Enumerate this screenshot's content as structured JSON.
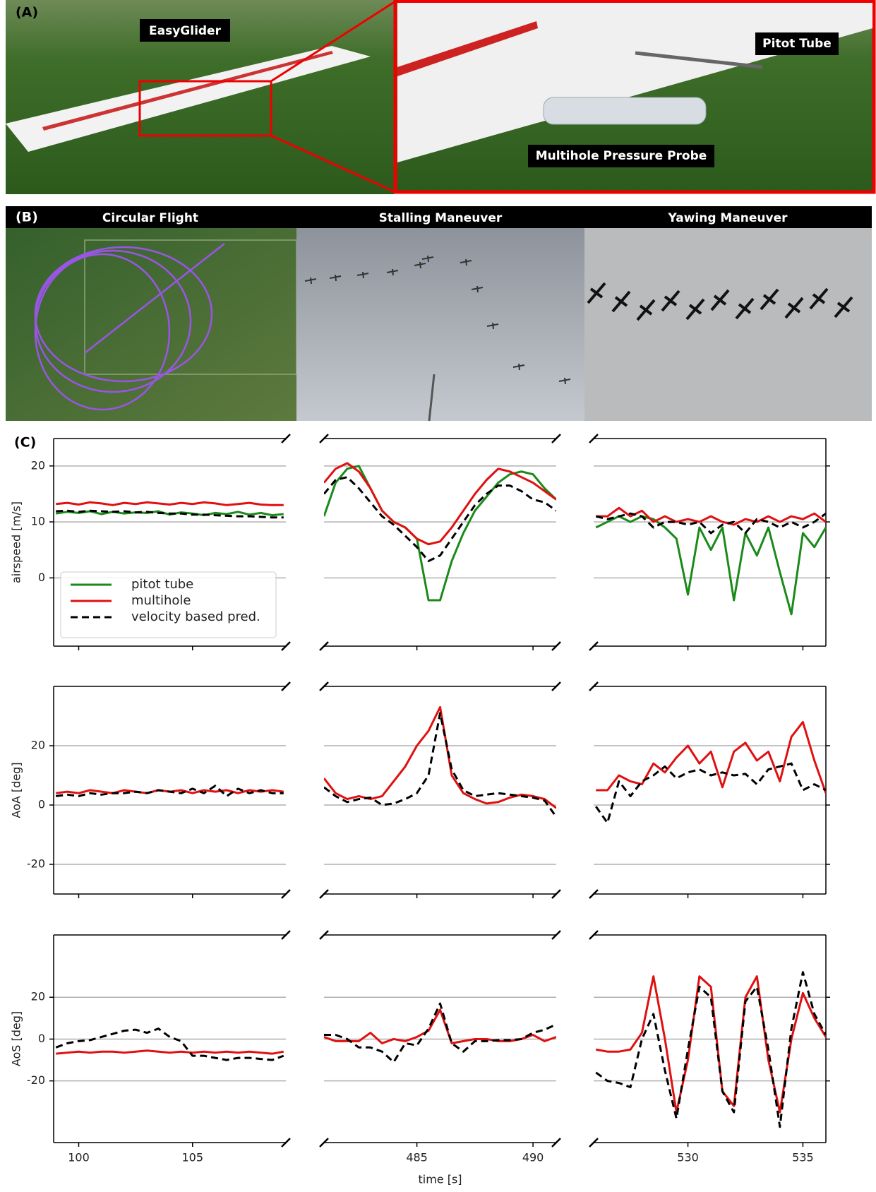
{
  "panel_a": {
    "label": "(A)",
    "annotations": [
      "EasyGlider",
      "Pitot Tube",
      "Multihole Pressure Probe"
    ]
  },
  "panel_b": {
    "label": "(B)",
    "titles": [
      "Circular Flight",
      "Stalling Maneuver",
      "Yawing Maneuver"
    ]
  },
  "panel_c": {
    "label": "(C)"
  },
  "chart_data": [
    {
      "type": "line",
      "ylabel": "airspeed [m/s]",
      "x": [
        99,
        99.5,
        100,
        100.5,
        101,
        101.5,
        102,
        102.5,
        103,
        103.5,
        104,
        104.5,
        105,
        105.5,
        106,
        106.5,
        107,
        107.5,
        108,
        108.5,
        109
      ],
      "xlim": [
        98.9,
        109.1
      ],
      "xticks": [
        100,
        105
      ],
      "xtick_labels": false,
      "ylim": [
        -12.2,
        24.9
      ],
      "yticks": [
        0,
        10,
        20
      ],
      "ytick_side": "left",
      "grid": true,
      "legend": "lower left",
      "series": [
        {
          "name": "pitot tube",
          "color": "#1a8a1a",
          "linestyle": "solid",
          "values": [
            11.5,
            11.8,
            11.6,
            11.9,
            11.4,
            11.8,
            11.5,
            11.7,
            11.6,
            11.9,
            11.3,
            11.7,
            11.5,
            11.2,
            11.6,
            11.4,
            11.8,
            11.3,
            11.6,
            11.2,
            11.4
          ]
        },
        {
          "name": "multihole",
          "color": "#e01010",
          "linestyle": "solid",
          "values": [
            13.2,
            13.4,
            13.1,
            13.5,
            13.3,
            13.0,
            13.4,
            13.2,
            13.5,
            13.3,
            13.1,
            13.4,
            13.2,
            13.5,
            13.3,
            13.0,
            13.2,
            13.4,
            13.1,
            13.0,
            13.0
          ]
        },
        {
          "name": "velocity based pred.",
          "color": "#000000",
          "linestyle": "dashed",
          "values": [
            11.9,
            12.0,
            11.8,
            12.0,
            11.9,
            11.8,
            11.9,
            11.7,
            11.8,
            11.6,
            11.5,
            11.5,
            11.3,
            11.3,
            11.2,
            11.1,
            11.0,
            11.0,
            10.9,
            10.8,
            10.8
          ]
        }
      ]
    },
    {
      "type": "line",
      "x": [
        481,
        481.5,
        482,
        482.5,
        483,
        483.5,
        484,
        484.5,
        485,
        485.5,
        486,
        486.5,
        487,
        487.5,
        488,
        488.5,
        489,
        489.5,
        490,
        490.5,
        491
      ],
      "xlim": [
        481,
        491
      ],
      "xticks": [
        485,
        490
      ],
      "xtick_labels": false,
      "ylim": [
        -12.2,
        24.9
      ],
      "yticks": [
        0,
        10,
        20
      ],
      "ytick_side": "none",
      "grid": true,
      "series": [
        {
          "name": "pitot tube",
          "color": "#1a8a1a",
          "linestyle": "solid",
          "values": [
            11,
            17,
            19.5,
            20,
            16,
            12,
            10,
            9,
            7,
            -4,
            -4,
            3,
            8,
            12,
            14.5,
            17,
            18.5,
            19,
            18.5,
            16,
            14
          ]
        },
        {
          "name": "multihole",
          "color": "#e01010",
          "linestyle": "solid",
          "values": [
            17,
            19.5,
            20.5,
            19,
            16,
            12,
            10,
            9,
            7,
            6,
            6.5,
            9,
            12,
            15,
            17.5,
            19.5,
            19,
            18,
            17,
            15.5,
            14
          ]
        },
        {
          "name": "velocity based pred.",
          "color": "#000000",
          "linestyle": "dashed",
          "values": [
            15,
            17.5,
            18,
            16,
            13.5,
            11,
            9.5,
            7.5,
            5.5,
            3,
            4,
            7,
            10,
            13,
            15,
            16.5,
            16.5,
            15.5,
            14,
            13.5,
            12
          ]
        }
      ]
    },
    {
      "type": "line",
      "x": [
        526,
        526.5,
        527,
        527.5,
        528,
        528.5,
        529,
        529.5,
        530,
        530.5,
        531,
        531.5,
        532,
        532.5,
        533,
        533.5,
        534,
        534.5,
        535,
        535.5,
        536
      ],
      "xlim": [
        525.9,
        536
      ],
      "xticks": [
        530,
        535
      ],
      "xtick_labels": false,
      "ylim": [
        -12.2,
        24.9
      ],
      "yticks": [
        0,
        10,
        20
      ],
      "ytick_side": "right",
      "grid": true,
      "series": [
        {
          "name": "pitot tube",
          "color": "#1a8a1a",
          "linestyle": "solid",
          "values": [
            9,
            10,
            11,
            10,
            11,
            10.5,
            9,
            7,
            -3,
            9,
            5,
            9,
            -4,
            8,
            4,
            9,
            1,
            -6.5,
            8,
            5.5,
            9
          ]
        },
        {
          "name": "multihole",
          "color": "#e01010",
          "linestyle": "solid",
          "values": [
            11,
            11,
            12.5,
            11,
            12,
            10,
            11,
            10,
            10.5,
            10,
            11,
            10,
            9.5,
            10.5,
            10,
            11,
            10,
            11,
            10.5,
            11.5,
            10
          ]
        },
        {
          "name": "velocity based pred.",
          "color": "#000000",
          "linestyle": "dashed",
          "values": [
            11,
            10.5,
            11,
            11.5,
            11,
            9,
            10,
            10,
            9.5,
            10,
            8,
            9.5,
            10,
            8,
            10.5,
            10,
            9,
            10,
            9,
            10,
            11.5
          ]
        }
      ]
    },
    {
      "type": "line",
      "ylabel": "AoA [deg]",
      "x": [
        99,
        99.5,
        100,
        100.5,
        101,
        101.5,
        102,
        102.5,
        103,
        103.5,
        104,
        104.5,
        105,
        105.5,
        106,
        106.5,
        107,
        107.5,
        108,
        108.5,
        109
      ],
      "xlim": [
        98.9,
        109.1
      ],
      "xticks": [
        100,
        105
      ],
      "xtick_labels": false,
      "ylim": [
        -30,
        40
      ],
      "yticks": [
        -20,
        0,
        20
      ],
      "ytick_side": "left",
      "grid": true,
      "series": [
        {
          "name": "multihole",
          "color": "#e01010",
          "linestyle": "solid",
          "values": [
            4,
            4.5,
            4,
            5,
            4.5,
            4,
            5,
            4.5,
            4,
            5,
            4.5,
            5,
            4,
            5,
            4.5,
            5,
            4,
            5,
            4.5,
            5,
            4.5
          ]
        },
        {
          "name": "velocity based pred.",
          "color": "#000000",
          "linestyle": "dashed",
          "values": [
            3,
            3.5,
            3,
            4,
            3.5,
            4,
            4,
            4.5,
            4,
            5,
            4.5,
            4,
            5.5,
            4,
            6.5,
            3,
            5.5,
            4,
            5,
            4,
            4
          ]
        }
      ]
    },
    {
      "type": "line",
      "x": [
        481,
        481.5,
        482,
        482.5,
        483,
        483.5,
        484,
        484.5,
        485,
        485.5,
        486,
        486.5,
        487,
        487.5,
        488,
        488.5,
        489,
        489.5,
        490,
        490.5,
        491
      ],
      "xlim": [
        481,
        491
      ],
      "xticks": [
        485,
        490
      ],
      "xtick_labels": false,
      "ylim": [
        -30,
        40
      ],
      "yticks": [
        -20,
        0,
        20
      ],
      "ytick_side": "none",
      "grid": true,
      "series": [
        {
          "name": "multihole",
          "color": "#e01010",
          "linestyle": "solid",
          "values": [
            9,
            4,
            2,
            3,
            2,
            3,
            8,
            13,
            20,
            25,
            33,
            10,
            4,
            2,
            0.5,
            1,
            2.5,
            3.5,
            3,
            2,
            -1
          ]
        },
        {
          "name": "velocity based pred.",
          "color": "#000000",
          "linestyle": "dashed",
          "values": [
            6,
            3,
            1,
            2,
            2.5,
            0,
            0.5,
            2,
            4,
            10,
            31,
            12,
            5,
            3,
            3.5,
            4,
            3.5,
            3,
            2.5,
            1.5,
            -4
          ]
        }
      ]
    },
    {
      "type": "line",
      "x": [
        526,
        526.5,
        527,
        527.5,
        528,
        528.5,
        529,
        529.5,
        530,
        530.5,
        531,
        531.5,
        532,
        532.5,
        533,
        533.5,
        534,
        534.5,
        535,
        535.5,
        536
      ],
      "xlim": [
        525.9,
        536
      ],
      "xticks": [
        530,
        535
      ],
      "xtick_labels": false,
      "ylim": [
        -30,
        40
      ],
      "yticks": [
        -20,
        0,
        20
      ],
      "ytick_side": "right",
      "grid": true,
      "series": [
        {
          "name": "multihole",
          "color": "#e01010",
          "linestyle": "solid",
          "values": [
            5,
            5,
            10,
            8,
            7,
            14,
            11,
            16,
            20,
            14,
            18,
            6,
            18,
            21,
            15,
            18,
            8,
            23,
            28,
            15,
            4
          ]
        },
        {
          "name": "velocity based pred.",
          "color": "#000000",
          "linestyle": "dashed",
          "values": [
            -0.5,
            -6,
            8,
            3,
            8,
            10,
            13,
            9,
            11,
            12,
            10,
            11,
            10,
            10.5,
            7,
            12,
            13,
            14,
            5,
            7,
            5
          ]
        }
      ]
    },
    {
      "type": "line",
      "ylabel": "AoS [deg]",
      "x": [
        99,
        99.5,
        100,
        100.5,
        101,
        101.5,
        102,
        102.5,
        103,
        103.5,
        104,
        104.5,
        105,
        105.5,
        106,
        106.5,
        107,
        107.5,
        108,
        108.5,
        109
      ],
      "xlim": [
        98.9,
        109.1
      ],
      "xticks": [
        100,
        105
      ],
      "xtick_labels": true,
      "ylim": [
        -49.5,
        49.8
      ],
      "yticks": [
        -20,
        0,
        20
      ],
      "ytick_side": "left",
      "grid": true,
      "series": [
        {
          "name": "multihole",
          "color": "#e01010",
          "linestyle": "solid",
          "values": [
            -7,
            -6.5,
            -6,
            -6.5,
            -6,
            -6,
            -6.5,
            -6,
            -5.5,
            -6,
            -6.5,
            -6,
            -6.5,
            -6,
            -6.5,
            -6,
            -6.5,
            -6,
            -6.5,
            -7,
            -6
          ]
        },
        {
          "name": "velocity based pred.",
          "color": "#000000",
          "linestyle": "dashed",
          "values": [
            -4,
            -2,
            -1,
            -0.5,
            1,
            2.5,
            4,
            4.5,
            3,
            5,
            1,
            -1,
            -8,
            -8,
            -9,
            -10,
            -9,
            -9,
            -9.5,
            -10,
            -8
          ]
        }
      ]
    },
    {
      "type": "line",
      "xlabel": "time [s]",
      "x": [
        481,
        481.5,
        482,
        482.5,
        483,
        483.5,
        484,
        484.5,
        485,
        485.5,
        486,
        486.5,
        487,
        487.5,
        488,
        488.5,
        489,
        489.5,
        490,
        490.5,
        491
      ],
      "xlim": [
        481,
        491
      ],
      "xticks": [
        485,
        490
      ],
      "xtick_labels": true,
      "ylim": [
        -49.5,
        49.8
      ],
      "yticks": [
        -20,
        0,
        20
      ],
      "ytick_side": "none",
      "grid": true,
      "series": [
        {
          "name": "multihole",
          "color": "#e01010",
          "linestyle": "solid",
          "values": [
            1,
            -1,
            -1,
            -1,
            3,
            -2,
            0,
            -1,
            1,
            4,
            14,
            -2,
            -1,
            0,
            0,
            -1,
            -1,
            0,
            2,
            -1,
            1
          ]
        },
        {
          "name": "velocity based pred.",
          "color": "#000000",
          "linestyle": "dashed",
          "values": [
            2,
            2,
            0,
            -4,
            -4,
            -6,
            -11,
            -2,
            -3,
            5,
            17,
            -2,
            -6,
            -1,
            -1,
            -0.5,
            -0.5,
            0,
            3,
            4.5,
            7
          ]
        }
      ]
    },
    {
      "type": "line",
      "x": [
        526,
        526.5,
        527,
        527.5,
        528,
        528.5,
        529,
        529.5,
        530,
        530.5,
        531,
        531.5,
        532,
        532.5,
        533,
        533.5,
        534,
        534.5,
        535,
        535.5,
        536
      ],
      "xlim": [
        525.9,
        536
      ],
      "xticks": [
        530,
        535
      ],
      "xtick_labels": true,
      "ylim": [
        -49.5,
        49.8
      ],
      "yticks": [
        -20,
        0,
        20
      ],
      "ytick_side": "right",
      "grid": true,
      "series": [
        {
          "name": "multihole",
          "color": "#e01010",
          "linestyle": "solid",
          "values": [
            -5,
            -6,
            -6,
            -5,
            3,
            30,
            0,
            -35,
            -10,
            30,
            25,
            -25,
            -32,
            20,
            30,
            -10,
            -35,
            0,
            22,
            10,
            1
          ]
        },
        {
          "name": "velocity based pred.",
          "color": "#000000",
          "linestyle": "dashed",
          "values": [
            -16,
            -20,
            -21,
            -23,
            0,
            12,
            -15,
            -38,
            -5,
            25,
            20,
            -25,
            -35,
            18,
            25,
            -5,
            -42,
            5,
            32,
            12,
            2
          ]
        }
      ]
    }
  ]
}
